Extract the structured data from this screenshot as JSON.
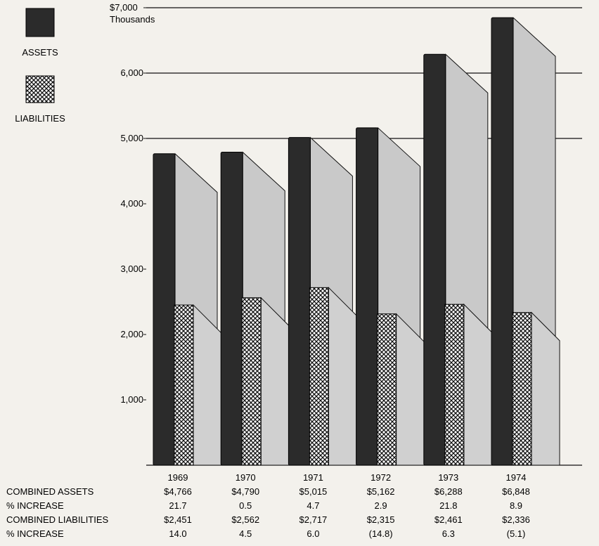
{
  "chart_data": {
    "type": "bar",
    "categories": [
      "1969",
      "1970",
      "1971",
      "1972",
      "1973",
      "1974"
    ],
    "series": [
      {
        "name": "ASSETS",
        "values": [
          4766,
          4790,
          5015,
          5162,
          6288,
          6848
        ]
      },
      {
        "name": "LIABILITIES",
        "values": [
          2451,
          2562,
          2717,
          2315,
          2461,
          2336
        ]
      }
    ],
    "ylim": [
      0,
      7000
    ],
    "y_ticks": [
      {
        "value": 1000,
        "label": "1,000"
      },
      {
        "value": 2000,
        "label": "2,000"
      },
      {
        "value": 3000,
        "label": "3,000"
      },
      {
        "value": 4000,
        "label": "4,000"
      },
      {
        "value": 5000,
        "label": "5,000"
      },
      {
        "value": 6000,
        "label": "6,000"
      },
      {
        "value": 7000,
        "label": "$7,000"
      }
    ],
    "y_unit": "Thousands",
    "grid": "horizontal lines at 5,000, 6,000 and 7,000",
    "legend_position": "top-left",
    "colors": {
      "assets": "#2b2b2b",
      "liabilities": "crosshatch",
      "shadow": "#c9c9c9",
      "background": "#f3f1ec"
    },
    "table": {
      "rows": [
        {
          "label": "COMBINED ASSETS",
          "values": [
            "$4,766",
            "$4,790",
            "$5,015",
            "$5,162",
            "$6,288",
            "$6,848"
          ]
        },
        {
          "label": "% INCREASE",
          "values": [
            "21.7",
            "0.5",
            "4.7",
            "2.9",
            "21.8",
            "8.9"
          ]
        },
        {
          "label": "COMBINED LIABILITIES",
          "values": [
            "$2,451",
            "$2,562",
            "$2,717",
            "$2,315",
            "$2,461",
            "$2,336"
          ]
        },
        {
          "label": "% INCREASE",
          "values": [
            "14.0",
            "4.5",
            "6.0",
            "(14.8)",
            "6.3",
            "(5.1)"
          ]
        }
      ]
    }
  }
}
